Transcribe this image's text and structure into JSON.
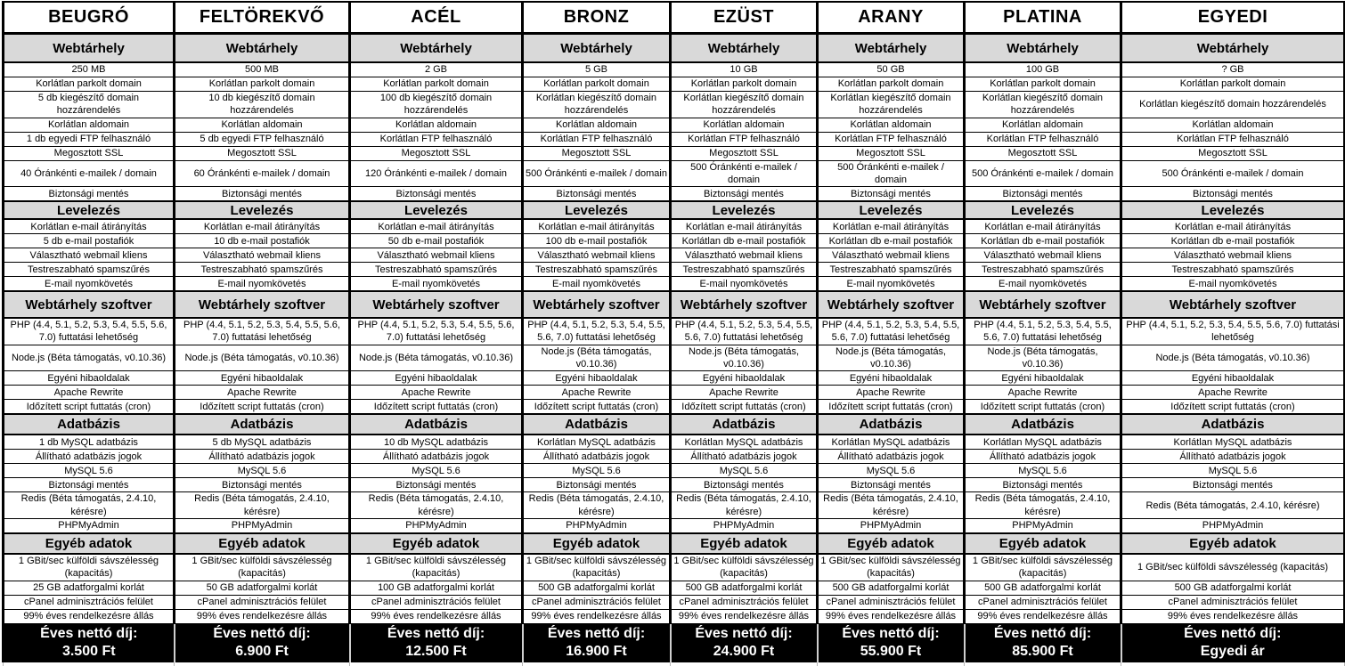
{
  "table": {
    "section_titles": [
      "Webtárhely",
      "Levelezés",
      "Webtárhely szoftver",
      "Adatbázis",
      "Egyéb adatok"
    ],
    "footer_label": "Éves nettó díj:",
    "plans": [
      {
        "name": "BEUGRÓ",
        "price": "3.500 Ft",
        "features": {
          "storage": "250 MB",
          "parked_domain": "Korlátlan parkolt domain",
          "addon_domain": "5 db kiegészítő domain hozzárendelés",
          "subdomain": "Korlátlan aldomain",
          "ftp": "1 db egyedi FTP felhasználó",
          "ssl": "Megosztott SSL",
          "hourly_email": "40 Óránkénti e-mailek / domain",
          "backup_web": "Biztonsági mentés",
          "email_forward": "Korlátlan e-mail átirányítás",
          "mailbox": "5 db e-mail postafiók",
          "webmail": "Választható webmail kliens",
          "spam": "Testreszabható spamszűrés",
          "email_tracking": "E-mail nyomkövetés",
          "php": "PHP (4.4, 5.1, 5.2, 5.3, 5.4, 5.5, 5.6, 7.0) futtatási lehetőség",
          "nodejs": "Node.js (Béta támogatás, v0.10.36)",
          "error_pages": "Egyéni hibaoldalak",
          "apache_rewrite": "Apache Rewrite",
          "cron": "Időzített script futtatás (cron)",
          "mysql_db": "1 db MySQL adatbázis",
          "db_rights": "Állítható adatbázis jogok",
          "mysql_version": "MySQL 5.6",
          "backup_db": "Biztonsági mentés",
          "redis": "Redis (Béta támogatás, 2.4.10, kérésre)",
          "phpmyadmin": "PHPMyAdmin",
          "bandwidth": "1 GBit/sec külföldi sávszélesség (kapacitás)",
          "traffic": "25 GB adatforgalmi korlát",
          "cpanel": "cPanel adminisztrációs felület",
          "uptime": "99% éves rendelkezésre állás"
        }
      },
      {
        "name": "FELTÖREKVŐ",
        "price": "6.900 Ft",
        "features": {
          "storage": "500 MB",
          "parked_domain": "Korlátlan parkolt domain",
          "addon_domain": "10 db kiegészítő domain hozzárendelés",
          "subdomain": "Korlátlan aldomain",
          "ftp": "5 db egyedi FTP felhasználó",
          "ssl": "Megosztott SSL",
          "hourly_email": "60 Óránkénti e-mailek / domain",
          "backup_web": "Biztonsági mentés",
          "email_forward": "Korlátlan e-mail átirányítás",
          "mailbox": "10 db e-mail postafiók",
          "webmail": "Választható webmail kliens",
          "spam": "Testreszabható spamszűrés",
          "email_tracking": "E-mail nyomkövetés",
          "php": "PHP (4.4, 5.1, 5.2, 5.3, 5.4, 5.5, 5.6, 7.0) futtatási lehetőség",
          "nodejs": "Node.js (Béta támogatás, v0.10.36)",
          "error_pages": "Egyéni hibaoldalak",
          "apache_rewrite": "Apache Rewrite",
          "cron": "Időzített script futtatás (cron)",
          "mysql_db": "5 db MySQL adatbázis",
          "db_rights": "Állítható adatbázis jogok",
          "mysql_version": "MySQL 5.6",
          "backup_db": "Biztonsági mentés",
          "redis": "Redis (Béta támogatás, 2.4.10, kérésre)",
          "phpmyadmin": "PHPMyAdmin",
          "bandwidth": "1 GBit/sec külföldi sávszélesség (kapacitás)",
          "traffic": "50 GB adatforgalmi korlát",
          "cpanel": "cPanel adminisztrációs felület",
          "uptime": "99% éves rendelkezésre állás"
        }
      },
      {
        "name": "ACÉL",
        "price": "12.500 Ft",
        "features": {
          "storage": "2 GB",
          "parked_domain": "Korlátlan parkolt domain",
          "addon_domain": "100 db kiegészítő domain hozzárendelés",
          "subdomain": "Korlátlan aldomain",
          "ftp": "Korlátlan FTP felhasználó",
          "ssl": "Megosztott SSL",
          "hourly_email": "120 Óránkénti e-mailek / domain",
          "backup_web": "Biztonsági mentés",
          "email_forward": "Korlátlan e-mail átirányítás",
          "mailbox": "50 db e-mail postafiók",
          "webmail": "Választható webmail kliens",
          "spam": "Testreszabható spamszűrés",
          "email_tracking": "E-mail nyomkövetés",
          "php": "PHP (4.4, 5.1, 5.2, 5.3, 5.4, 5.5, 5.6, 7.0) futtatási lehetőség",
          "nodejs": "Node.js (Béta támogatás, v0.10.36)",
          "error_pages": "Egyéni hibaoldalak",
          "apache_rewrite": "Apache Rewrite",
          "cron": "Időzített script futtatás (cron)",
          "mysql_db": "10 db MySQL adatbázis",
          "db_rights": "Állítható adatbázis jogok",
          "mysql_version": "MySQL 5.6",
          "backup_db": "Biztonsági mentés",
          "redis": "Redis (Béta támogatás, 2.4.10, kérésre)",
          "phpmyadmin": "PHPMyAdmin",
          "bandwidth": "1 GBit/sec külföldi sávszélesség (kapacitás)",
          "traffic": "100 GB adatforgalmi korlát",
          "cpanel": "cPanel adminisztrációs felület",
          "uptime": "99% éves rendelkezésre állás"
        }
      },
      {
        "name": "BRONZ",
        "price": "16.900 Ft",
        "features": {
          "storage": "5 GB",
          "parked_domain": "Korlátlan parkolt domain",
          "addon_domain": "Korlátlan kiegészítő domain hozzárendelés",
          "subdomain": "Korlátlan aldomain",
          "ftp": "Korlátlan FTP felhasználó",
          "ssl": "Megosztott SSL",
          "hourly_email": "500 Óránkénti e-mailek / domain",
          "backup_web": "Biztonsági mentés",
          "email_forward": "Korlátlan e-mail átirányítás",
          "mailbox": "100 db e-mail postafiók",
          "webmail": "Választható webmail kliens",
          "spam": "Testreszabható spamszűrés",
          "email_tracking": "E-mail nyomkövetés",
          "php": "PHP (4.4, 5.1, 5.2, 5.3, 5.4, 5.5, 5.6, 7.0) futtatási lehetőség",
          "nodejs": "Node.js (Béta támogatás, v0.10.36)",
          "error_pages": "Egyéni hibaoldalak",
          "apache_rewrite": "Apache Rewrite",
          "cron": "Időzített script futtatás (cron)",
          "mysql_db": "Korlátlan MySQL adatbázis",
          "db_rights": "Állítható adatbázis jogok",
          "mysql_version": "MySQL 5.6",
          "backup_db": "Biztonsági mentés",
          "redis": "Redis (Béta támogatás, 2.4.10, kérésre)",
          "phpmyadmin": "PHPMyAdmin",
          "bandwidth": "1 GBit/sec külföldi sávszélesség (kapacitás)",
          "traffic": "500 GB adatforgalmi korlát",
          "cpanel": "cPanel adminisztrációs felület",
          "uptime": "99% éves rendelkezésre állás"
        }
      },
      {
        "name": "EZÜST",
        "price": "24.900 Ft",
        "features": {
          "storage": "10 GB",
          "parked_domain": "Korlátlan parkolt domain",
          "addon_domain": "Korlátlan kiegészítő domain hozzárendelés",
          "subdomain": "Korlátlan aldomain",
          "ftp": "Korlátlan FTP felhasználó",
          "ssl": "Megosztott SSL",
          "hourly_email": "500 Óránkénti e-mailek / domain",
          "backup_web": "Biztonsági mentés",
          "email_forward": "Korlátlan e-mail átirányítás",
          "mailbox": "Korlátlan db e-mail postafiók",
          "webmail": "Választható webmail kliens",
          "spam": "Testreszabható spamszűrés",
          "email_tracking": "E-mail nyomkövetés",
          "php": "PHP (4.4, 5.1, 5.2, 5.3, 5.4, 5.5, 5.6, 7.0) futtatási lehetőség",
          "nodejs": "Node.js (Béta támogatás, v0.10.36)",
          "error_pages": "Egyéni hibaoldalak",
          "apache_rewrite": "Apache Rewrite",
          "cron": "Időzített script futtatás (cron)",
          "mysql_db": "Korlátlan MySQL adatbázis",
          "db_rights": "Állítható adatbázis jogok",
          "mysql_version": "MySQL 5.6",
          "backup_db": "Biztonsági mentés",
          "redis": "Redis (Béta támogatás, 2.4.10, kérésre)",
          "phpmyadmin": "PHPMyAdmin",
          "bandwidth": "1 GBit/sec külföldi sávszélesség (kapacitás)",
          "traffic": "500 GB adatforgalmi korlát",
          "cpanel": "cPanel adminisztrációs felület",
          "uptime": "99% éves rendelkezésre állás"
        }
      },
      {
        "name": "ARANY",
        "price": "55.900 Ft",
        "features": {
          "storage": "50 GB",
          "parked_domain": "Korlátlan parkolt domain",
          "addon_domain": "Korlátlan kiegészítő domain hozzárendelés",
          "subdomain": "Korlátlan aldomain",
          "ftp": "Korlátlan FTP felhasználó",
          "ssl": "Megosztott SSL",
          "hourly_email": "500 Óránkénti e-mailek / domain",
          "backup_web": "Biztonsági mentés",
          "email_forward": "Korlátlan e-mail átirányítás",
          "mailbox": "Korlátlan db e-mail postafiók",
          "webmail": "Választható webmail kliens",
          "spam": "Testreszabható spamszűrés",
          "email_tracking": "E-mail nyomkövetés",
          "php": "PHP (4.4, 5.1, 5.2, 5.3, 5.4, 5.5, 5.6, 7.0) futtatási lehetőség",
          "nodejs": "Node.js (Béta támogatás, v0.10.36)",
          "error_pages": "Egyéni hibaoldalak",
          "apache_rewrite": "Apache Rewrite",
          "cron": "Időzített script futtatás (cron)",
          "mysql_db": "Korlátlan MySQL adatbázis",
          "db_rights": "Állítható adatbázis jogok",
          "mysql_version": "MySQL 5.6",
          "backup_db": "Biztonsági mentés",
          "redis": "Redis (Béta támogatás, 2.4.10, kérésre)",
          "phpmyadmin": "PHPMyAdmin",
          "bandwidth": "1 GBit/sec külföldi sávszélesség (kapacitás)",
          "traffic": "500 GB adatforgalmi korlát",
          "cpanel": "cPanel adminisztrációs felület",
          "uptime": "99% éves rendelkezésre állás"
        }
      },
      {
        "name": "PLATINA",
        "price": "85.900 Ft",
        "features": {
          "storage": "100 GB",
          "parked_domain": "Korlátlan parkolt domain",
          "addon_domain": "Korlátlan kiegészítő domain hozzárendelés",
          "subdomain": "Korlátlan aldomain",
          "ftp": "Korlátlan FTP felhasználó",
          "ssl": "Megosztott SSL",
          "hourly_email": "500 Óránkénti e-mailek / domain",
          "backup_web": "Biztonsági mentés",
          "email_forward": "Korlátlan e-mail átirányítás",
          "mailbox": "Korlátlan db e-mail postafiók",
          "webmail": "Választható webmail kliens",
          "spam": "Testreszabható spamszűrés",
          "email_tracking": "E-mail nyomkövetés",
          "php": "PHP (4.4, 5.1, 5.2, 5.3, 5.4, 5.5, 5.6, 7.0) futtatási lehetőség",
          "nodejs": "Node.js (Béta támogatás, v0.10.36)",
          "error_pages": "Egyéni hibaoldalak",
          "apache_rewrite": "Apache Rewrite",
          "cron": "Időzített script futtatás (cron)",
          "mysql_db": "Korlátlan MySQL adatbázis",
          "db_rights": "Állítható adatbázis jogok",
          "mysql_version": "MySQL 5.6",
          "backup_db": "Biztonsági mentés",
          "redis": "Redis (Béta támogatás, 2.4.10, kérésre)",
          "phpmyadmin": "PHPMyAdmin",
          "bandwidth": "1 GBit/sec külföldi sávszélesség (kapacitás)",
          "traffic": "500 GB adatforgalmi korlát",
          "cpanel": "cPanel adminisztrációs felület",
          "uptime": "99% éves rendelkezésre állás"
        }
      },
      {
        "name": "EGYEDI",
        "price": "Egyedi ár",
        "features": {
          "storage": "? GB",
          "parked_domain": "Korlátlan parkolt domain",
          "addon_domain": "Korlátlan kiegészítő domain hozzárendelés",
          "subdomain": "Korlátlan aldomain",
          "ftp": "Korlátlan FTP felhasználó",
          "ssl": "Megosztott SSL",
          "hourly_email": "500 Óránkénti e-mailek / domain",
          "backup_web": "Biztonsági mentés",
          "email_forward": "Korlátlan e-mail átirányítás",
          "mailbox": "Korlátlan db e-mail postafiók",
          "webmail": "Választható webmail kliens",
          "spam": "Testreszabható spamszűrés",
          "email_tracking": "E-mail nyomkövetés",
          "php": "PHP (4.4, 5.1, 5.2, 5.3, 5.4, 5.5, 5.6, 7.0) futtatási lehetőség",
          "nodejs": "Node.js (Béta támogatás, v0.10.36)",
          "error_pages": "Egyéni hibaoldalak",
          "apache_rewrite": "Apache Rewrite",
          "cron": "Időzített script futtatás (cron)",
          "mysql_db": "Korlátlan MySQL adatbázis",
          "db_rights": "Állítható adatbázis jogok",
          "mysql_version": "MySQL 5.6",
          "backup_db": "Biztonsági mentés",
          "redis": "Redis (Béta támogatás, 2.4.10, kérésre)",
          "phpmyadmin": "PHPMyAdmin",
          "bandwidth": "1 GBit/sec külföldi sávszélesség (kapacitás)",
          "traffic": "500 GB adatforgalmi korlát",
          "cpanel": "cPanel adminisztrációs felület",
          "uptime": "99% éves rendelkezésre állás"
        }
      }
    ]
  }
}
